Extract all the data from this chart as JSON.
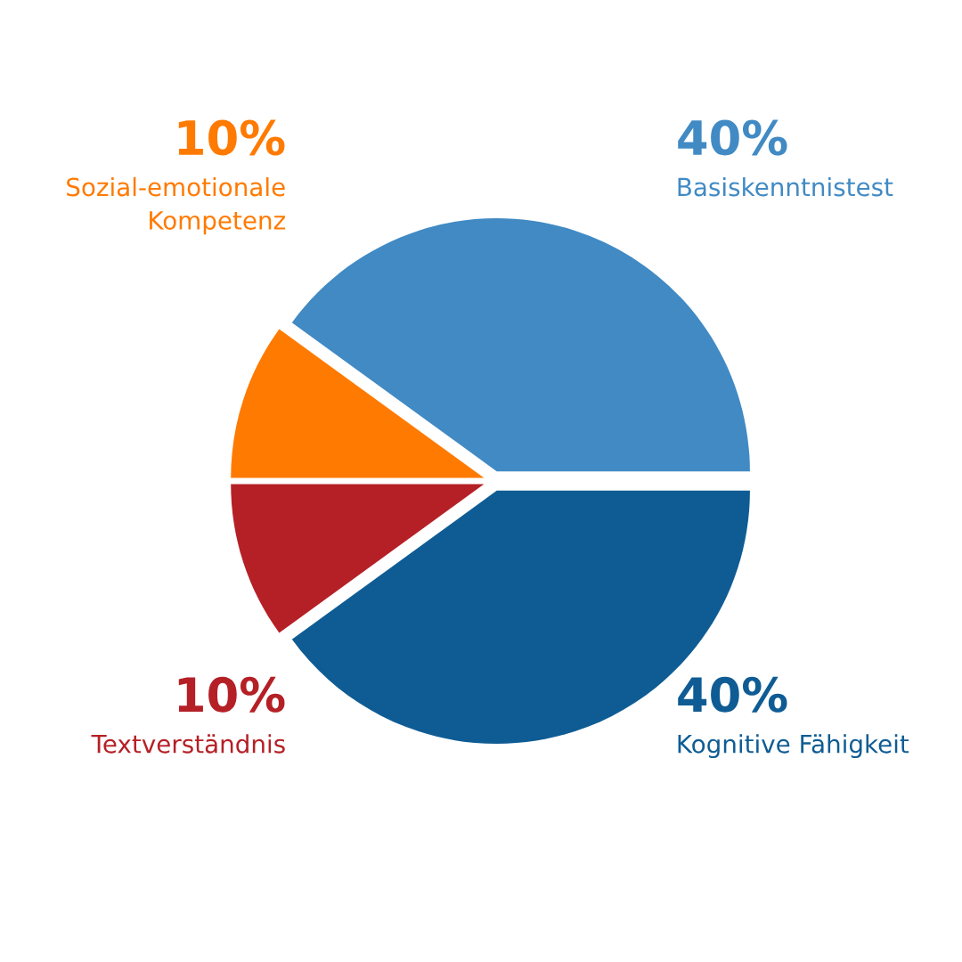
{
  "chart_data": {
    "type": "pie",
    "categories": [
      "Basiskenntnistest",
      "Sozial-emotionale\nKompetenz",
      "Textverständnis",
      "Kognitive Fähigkeit"
    ],
    "values": [
      40,
      10,
      10,
      40
    ],
    "value_labels": [
      "40%",
      "10%",
      "10%",
      "40%"
    ],
    "colors": [
      "#418ac4",
      "#ff7a00",
      "#b52026",
      "#0f5c94"
    ],
    "legend": false
  }
}
